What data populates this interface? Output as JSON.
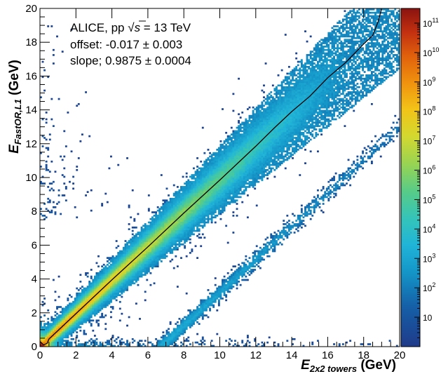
{
  "chart_data": {
    "type": "heatmap",
    "title": "",
    "xlabel": {
      "symbol": "E",
      "subscript": "2x2 towers",
      "unit": " (GeV)"
    },
    "ylabel": {
      "symbol": "E",
      "subscript": "FastOR,L1",
      "unit": " (GeV)"
    },
    "xlim": [
      0,
      20
    ],
    "ylim": [
      0,
      20
    ],
    "x_ticks": [
      "0",
      "2",
      "4",
      "6",
      "8",
      "10",
      "12",
      "14",
      "16",
      "18",
      "20"
    ],
    "y_ticks": [
      "0",
      "2",
      "4",
      "6",
      "8",
      "10",
      "12",
      "14",
      "16",
      "18",
      "20"
    ],
    "colorbar": {
      "scale": "log",
      "range_exponent": [
        0,
        11.5
      ],
      "labels": [
        "10",
        "10^2",
        "10^3",
        "10^4",
        "10^5",
        "10^6",
        "10^7",
        "10^8",
        "10^9",
        "10^10",
        "10^11"
      ]
    },
    "annotations": {
      "experiment": "ALICE, pp ",
      "sqrt_symbol": "√",
      "sqrt_var": "s",
      "energy": " = 13 TeV",
      "offset": "offset: -0.017 ± 0.003",
      "slope": "slope; 0.9875 ± 0.0004"
    },
    "fit": {
      "offset": -0.017,
      "slope": 0.9875
    },
    "mean_profile": {
      "x": [
        0.0,
        0.2,
        0.4,
        0.5,
        1,
        2,
        4,
        6,
        8,
        10,
        12,
        13,
        14,
        15,
        16,
        17,
        18,
        18.5,
        18.8,
        19.0
      ],
      "y": [
        0.3,
        0.1,
        0.2,
        0.45,
        0.95,
        1.95,
        3.95,
        5.9,
        7.9,
        9.85,
        11.85,
        12.9,
        13.9,
        14.8,
        15.9,
        16.8,
        17.9,
        18.4,
        19.2,
        20.0
      ]
    }
  }
}
